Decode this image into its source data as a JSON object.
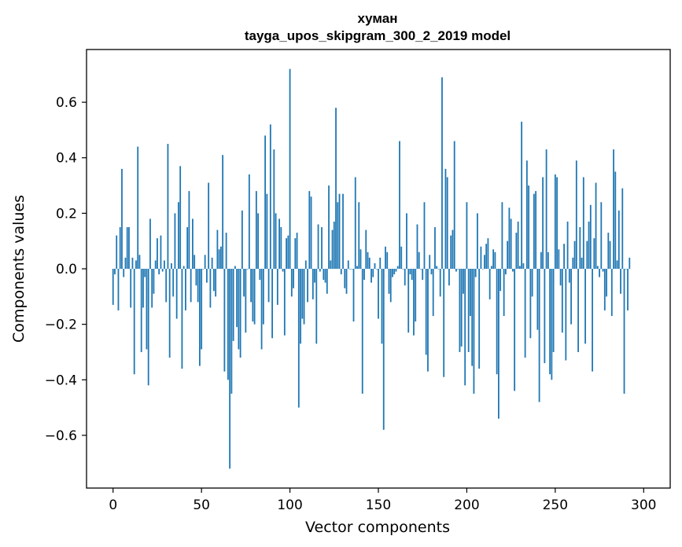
{
  "chart_data": {
    "type": "bar",
    "title": "хуман",
    "subtitle": "tayga_upos_skipgram_300_2_2019 model",
    "xlabel": "Vector components",
    "ylabel": "Components values",
    "xlim": [
      -15,
      315
    ],
    "ylim": [
      -0.79,
      0.79
    ],
    "xticks": [
      0,
      50,
      100,
      150,
      200,
      250,
      300
    ],
    "yticks": [
      0.6,
      0.4,
      0.2,
      0.0,
      -0.2,
      -0.4,
      -0.6
    ],
    "xtick_labels": [
      "0",
      "50",
      "100",
      "150",
      "200",
      "250",
      "300"
    ],
    "ytick_labels": [
      "0.6",
      "0.4",
      "0.2",
      "0.0",
      "−0.2",
      "−0.4",
      "−0.6"
    ],
    "bar_color": "#1f77b4",
    "values": [
      -0.13,
      -0.02,
      0.12,
      -0.15,
      0.15,
      0.36,
      -0.03,
      0.04,
      0.15,
      0.15,
      -0.14,
      0.04,
      -0.38,
      0.03,
      0.44,
      0.05,
      -0.3,
      -0.14,
      -0.03,
      -0.29,
      -0.42,
      0.18,
      -0.14,
      -0.09,
      0.03,
      0.11,
      -0.02,
      0.12,
      -0.01,
      0.03,
      -0.12,
      0.45,
      -0.32,
      0.02,
      -0.1,
      0.2,
      -0.18,
      0.24,
      0.37,
      -0.36,
      0.01,
      -0.15,
      0.15,
      0.28,
      -0.12,
      0.18,
      0.05,
      -0.06,
      -0.12,
      -0.35,
      -0.29,
      0.0,
      0.05,
      -0.05,
      0.31,
      -0.14,
      0.04,
      -0.08,
      -0.1,
      0.14,
      0.07,
      0.08,
      0.41,
      -0.37,
      0.13,
      -0.4,
      -0.72,
      -0.45,
      -0.26,
      0.01,
      -0.21,
      -0.29,
      -0.32,
      0.21,
      -0.1,
      -0.23,
      0.0,
      0.34,
      -0.12,
      -0.19,
      -0.2,
      0.28,
      0.2,
      -0.04,
      -0.29,
      -0.2,
      0.48,
      0.27,
      -0.12,
      0.52,
      -0.25,
      0.43,
      0.2,
      -0.13,
      0.18,
      0.15,
      -0.01,
      -0.24,
      0.11,
      0.12,
      0.72,
      -0.1,
      -0.07,
      0.11,
      0.13,
      -0.5,
      -0.27,
      -0.18,
      -0.2,
      0.03,
      -0.12,
      0.28,
      0.26,
      -0.11,
      -0.05,
      -0.27,
      0.16,
      -0.01,
      0.15,
      -0.04,
      -0.05,
      -0.09,
      0.3,
      0.03,
      0.14,
      0.17,
      0.58,
      0.24,
      0.27,
      -0.02,
      0.27,
      -0.07,
      -0.09,
      0.03,
      0.0,
      0.0,
      -0.19,
      0.33,
      0.01,
      0.24,
      0.07,
      -0.45,
      -0.04,
      0.14,
      0.06,
      0.04,
      -0.05,
      -0.03,
      0.02,
      0.0,
      -0.18,
      0.04,
      -0.27,
      -0.58,
      0.08,
      0.06,
      -0.09,
      -0.12,
      -0.03,
      -0.02,
      -0.01,
      0.01,
      0.46,
      0.08,
      0.0,
      -0.06,
      0.2,
      -0.23,
      -0.02,
      -0.04,
      -0.24,
      -0.19,
      0.16,
      0.06,
      0.0,
      -0.04,
      0.24,
      -0.31,
      -0.37,
      0.05,
      -0.02,
      -0.17,
      0.15,
      0.01,
      0.0,
      -0.1,
      0.69,
      -0.39,
      0.36,
      0.33,
      -0.06,
      0.12,
      0.14,
      0.46,
      -0.01,
      0.0,
      -0.3,
      -0.28,
      -0.09,
      -0.42,
      0.24,
      -0.3,
      -0.17,
      -0.35,
      -0.45,
      -0.03,
      0.2,
      -0.36,
      0.08,
      0.0,
      0.05,
      0.09,
      0.11,
      -0.11,
      0.01,
      0.07,
      0.06,
      -0.38,
      -0.54,
      -0.08,
      0.24,
      -0.17,
      -0.02,
      0.1,
      0.22,
      0.18,
      -0.01,
      -0.44,
      0.13,
      0.17,
      0.01,
      0.53,
      0.02,
      -0.32,
      0.39,
      0.3,
      -0.25,
      -0.1,
      0.27,
      0.28,
      -0.22,
      -0.48,
      0.06,
      0.33,
      -0.34,
      0.43,
      0.06,
      -0.38,
      -0.4,
      -0.3,
      0.34,
      0.33,
      0.07,
      -0.06,
      -0.23,
      0.09,
      -0.33,
      0.17,
      -0.05,
      -0.2,
      0.04,
      0.1,
      0.39,
      -0.3,
      0.15,
      0.04,
      0.33,
      -0.27,
      0.1,
      0.17,
      0.23,
      -0.37,
      0.11,
      0.31,
      0.01,
      -0.03,
      0.24,
      -0.01,
      -0.15,
      -0.1,
      0.13,
      0.1,
      -0.17,
      0.43,
      0.35,
      0.03,
      0.21,
      -0.09,
      0.29,
      -0.45,
      0.0,
      -0.15,
      0.04
    ]
  }
}
